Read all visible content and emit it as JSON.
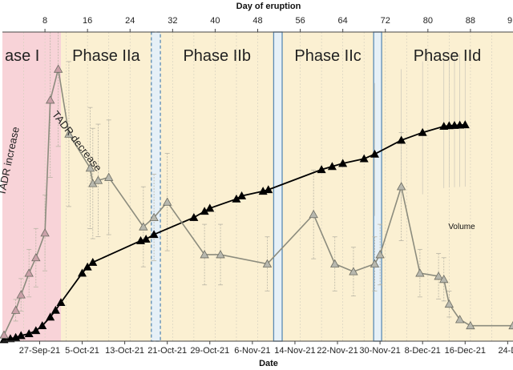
{
  "chart_data": {
    "type": "line",
    "title": "",
    "top_axis": {
      "title": "Day of eruption",
      "ticks": [
        8,
        16,
        24,
        32,
        40,
        48,
        56,
        64,
        72,
        80,
        88
      ],
      "partial_tick_label": "9"
    },
    "xlabel": "Date",
    "date_ticks": [
      {
        "day": 7,
        "label": "27-Sep-21"
      },
      {
        "day": 15,
        "label": "5-Oct-21"
      },
      {
        "day": 23,
        "label": "13-Oct-21"
      },
      {
        "day": 31,
        "label": "21-Oct-21"
      },
      {
        "day": 39,
        "label": "29-Oct-21"
      },
      {
        "day": 47,
        "label": "6-Nov-21"
      },
      {
        "day": 55,
        "label": "14-Nov-21"
      },
      {
        "day": 63,
        "label": "22-Nov-21"
      },
      {
        "day": 71,
        "label": "30-Nov-21"
      },
      {
        "day": 79,
        "label": "8-Dec-21"
      },
      {
        "day": 87,
        "label": "16-Dec-21"
      },
      {
        "day": 95,
        "label": "24-D"
      }
    ],
    "x_range": [
      0,
      96
    ],
    "y_range": [
      0,
      100
    ],
    "phases": [
      {
        "name": "Phase I",
        "label": "ase I",
        "start": 0,
        "end": 11,
        "color": "#f8d3d8"
      },
      {
        "name": "Phase IIa",
        "label": "Phase IIa",
        "start": 11,
        "end": 28,
        "color": "#fbf0d2"
      },
      {
        "name": "Phase IIb",
        "label": "Phase IIb",
        "start": 29.7,
        "end": 51,
        "color": "#fbf0d2"
      },
      {
        "name": "Phase IIc",
        "label": "Phase IIc",
        "start": 52.6,
        "end": 69.8,
        "color": "#fbf0d2"
      },
      {
        "name": "Phase IId",
        "label": "Phase IId",
        "start": 71.3,
        "end": 96,
        "color": "#fbf0d2"
      }
    ],
    "transition_bands": [
      {
        "start": 28,
        "end": 29.7,
        "style": "dashed"
      },
      {
        "start": 51,
        "end": 52.6,
        "style": "solid"
      },
      {
        "start": 69.8,
        "end": 71.3,
        "style": "solid"
      }
    ],
    "annotations": [
      {
        "text": "TADR increase",
        "at_day": 1.8,
        "at_value": 58,
        "rotate": -78
      },
      {
        "text": "TADR decrease",
        "at_day": 13.5,
        "at_value": 64,
        "rotate": 52
      }
    ],
    "series": [
      {
        "name": "Volume",
        "label": "Volume",
        "color": "#000000",
        "marker": "triangle-filled",
        "points": [
          [
            0.3,
            0.5
          ],
          [
            1.5,
            0.8
          ],
          [
            2.5,
            1.2
          ],
          [
            3.5,
            1.8
          ],
          [
            5,
            2.4
          ],
          [
            6.3,
            3.4
          ],
          [
            7.5,
            5
          ],
          [
            9,
            7.8
          ],
          [
            10,
            10
          ],
          [
            11,
            12.5
          ],
          [
            15,
            22
          ],
          [
            16,
            24
          ],
          [
            17,
            25.5
          ],
          [
            26,
            32.5
          ],
          [
            27,
            33
          ],
          [
            28.5,
            34.5
          ],
          [
            36,
            40
          ],
          [
            38,
            42
          ],
          [
            39,
            43
          ],
          [
            44,
            46
          ],
          [
            45,
            47
          ],
          [
            49,
            48.5
          ],
          [
            50,
            49
          ],
          [
            60,
            55.5
          ],
          [
            62,
            56.5
          ],
          [
            64,
            57.5
          ],
          [
            68,
            59
          ],
          [
            70,
            60.5
          ],
          [
            75,
            65
          ],
          [
            79,
            67.5
          ],
          [
            83,
            69.5
          ],
          [
            84,
            69.7
          ],
          [
            85,
            69.8
          ],
          [
            86,
            69.9
          ],
          [
            87,
            70
          ]
        ]
      },
      {
        "name": "TADR",
        "label": "",
        "color": "#8c8c7e",
        "marker": "triangle-gray",
        "points": [
          [
            0.3,
            2
          ],
          [
            2.5,
            10
          ],
          [
            3.5,
            15
          ],
          [
            5,
            22
          ],
          [
            6.3,
            27
          ],
          [
            8,
            35
          ],
          [
            9,
            78
          ],
          [
            10.5,
            88
          ],
          [
            12.5,
            67
          ],
          [
            16.5,
            56
          ],
          [
            17,
            51
          ],
          [
            18,
            52
          ],
          [
            20,
            53
          ],
          [
            26.5,
            37
          ],
          [
            28.5,
            40
          ],
          [
            31,
            45
          ],
          [
            38,
            28
          ],
          [
            41,
            28
          ],
          [
            49.8,
            25
          ],
          [
            58.5,
            41
          ],
          [
            62.5,
            25
          ],
          [
            66,
            22.5
          ],
          [
            70,
            25
          ],
          [
            71,
            28
          ],
          [
            75,
            50
          ],
          [
            78.5,
            22
          ],
          [
            82,
            21
          ],
          [
            83,
            20
          ],
          [
            84,
            12
          ],
          [
            86,
            7
          ],
          [
            88,
            5
          ],
          [
            96,
            5
          ]
        ]
      }
    ]
  }
}
